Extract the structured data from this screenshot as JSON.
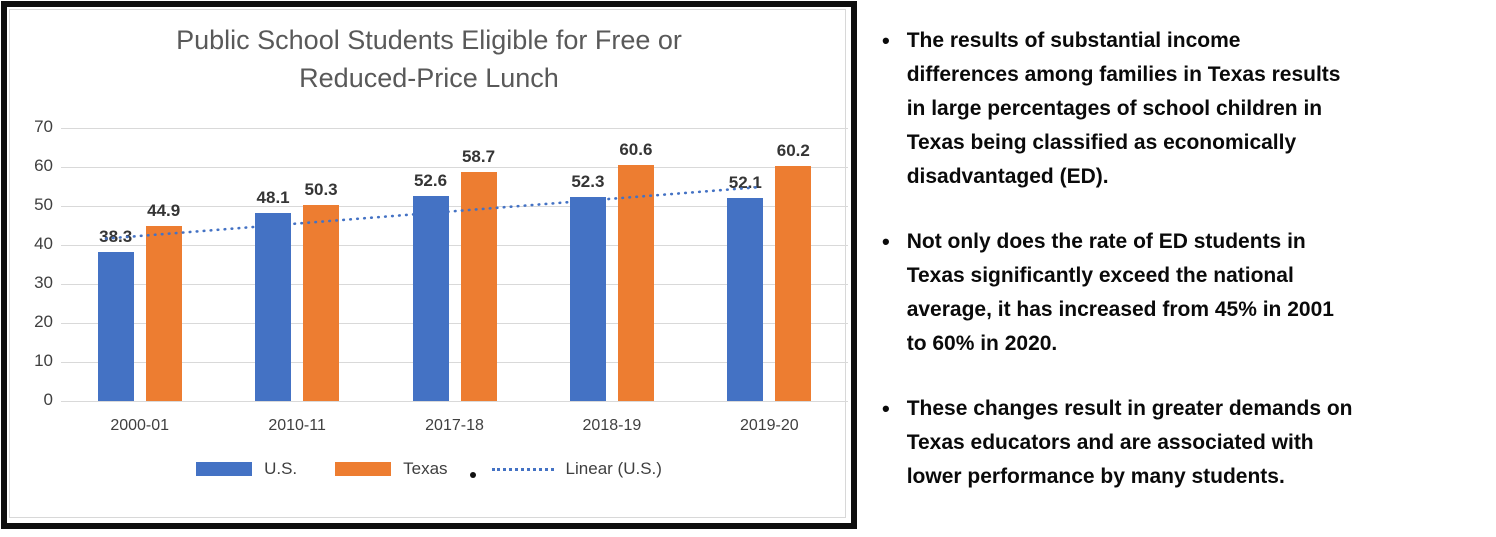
{
  "chart_data": {
    "type": "bar",
    "title": "Public School Students Eligible for Free or\nReduced-Price Lunch",
    "categories": [
      "2000-01",
      "2010-11",
      "2017-18",
      "2018-19",
      "2019-20"
    ],
    "series": [
      {
        "name": "U.S.",
        "color": "#4472C4",
        "values": [
          38.3,
          48.1,
          52.6,
          52.3,
          52.1
        ]
      },
      {
        "name": "Texas",
        "color": "#ED7D31",
        "values": [
          44.9,
          50.3,
          58.7,
          60.6,
          60.2
        ]
      }
    ],
    "trendline": {
      "name": "Linear (U.S.)",
      "based_on": "U.S.",
      "style": "dotted",
      "color": "#4472C4"
    },
    "xlabel": "",
    "ylabel": "",
    "ylim": [
      0,
      70
    ],
    "ytick_step": 10,
    "grid": true,
    "legend_position": "bottom"
  },
  "notes": {
    "bullet_char": "•",
    "items": [
      "The results of substantial income\ndifferences among families in Texas results\nin large percentages of school children in\nTexas being classified as economically\ndisadvantaged (ED).",
      "Not only does the rate of ED students in\nTexas significantly exceed the national\naverage, it has increased from 45% in 2001\nto 60% in 2020.",
      "These changes result in greater demands on\nTexas educators and are associated with\nlower performance by many students."
    ]
  }
}
